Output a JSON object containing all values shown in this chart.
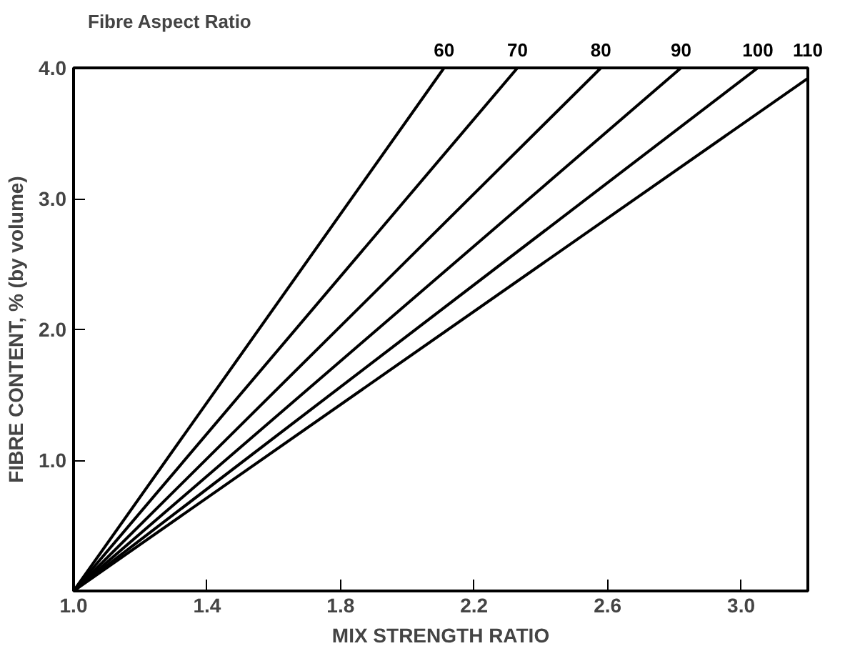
{
  "chart_data": {
    "type": "line",
    "legend_title": "Fibre Aspect Ratio",
    "xlabel": "MIX STRENGTH RATIO",
    "ylabel": "FIBRE CONTENT, % (by volume)",
    "xlim": [
      1.0,
      3.2
    ],
    "ylim": [
      0,
      4.0
    ],
    "xticks": [
      {
        "value": 1.0,
        "label": "1.0"
      },
      1.4,
      1.8,
      2.2,
      2.6,
      {
        "value": 3.0,
        "label": "3.0"
      }
    ],
    "yticks": [
      {
        "value": 1,
        "label": "1.0"
      },
      {
        "value": 2,
        "label": "2.0"
      },
      {
        "value": 3,
        "label": "3.0"
      },
      {
        "value": 4,
        "label": "4.0"
      }
    ],
    "grid": false,
    "marker": "none",
    "line_style": "solid",
    "series": [
      {
        "name": "60",
        "color": "#000000",
        "x": [
          1.0,
          2.11
        ],
        "values": [
          0,
          4.0
        ]
      },
      {
        "name": "70",
        "color": "#000000",
        "x": [
          1.0,
          2.33
        ],
        "values": [
          0,
          4.0
        ]
      },
      {
        "name": "80",
        "color": "#000000",
        "x": [
          1.0,
          2.58
        ],
        "values": [
          0,
          4.0
        ]
      },
      {
        "name": "90",
        "color": "#000000",
        "x": [
          1.0,
          2.82
        ],
        "values": [
          0,
          4.0
        ]
      },
      {
        "name": "100",
        "color": "#000000",
        "x": [
          1.0,
          3.05
        ],
        "values": [
          0,
          4.0
        ]
      },
      {
        "name": "110",
        "color": "#000000",
        "x": [
          1.0,
          3.2
        ],
        "values": [
          0,
          3.92
        ]
      }
    ]
  }
}
